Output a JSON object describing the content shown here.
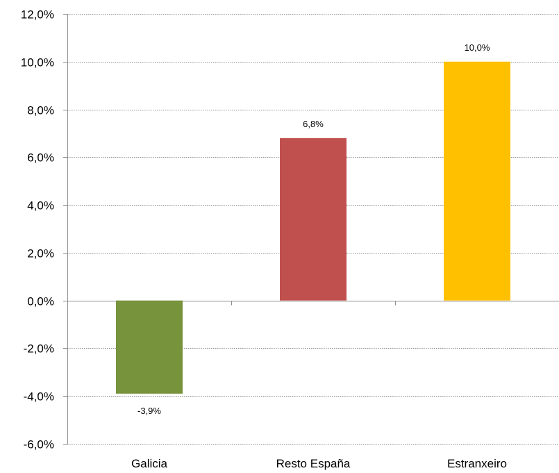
{
  "chart_data": {
    "type": "bar",
    "title": "",
    "xlabel": "",
    "ylabel": "",
    "categories": [
      "Galicia",
      "Resto España",
      "Estranxeiro"
    ],
    "values": [
      -3.9,
      6.8,
      10.0
    ],
    "data_labels": [
      "-3,9%",
      "6,8%",
      "10,0%"
    ],
    "colors": [
      "#77933C",
      "#C0504D",
      "#FFC000"
    ],
    "ylim": [
      -6,
      12
    ],
    "yticks": [
      12,
      10,
      8,
      6,
      4,
      2,
      0,
      -2,
      -4,
      -6
    ],
    "ytick_labels": [
      "12,0%",
      "10,0%",
      "8,0%",
      "6,0%",
      "4,0%",
      "2,0%",
      "0,0%",
      "-2,0%",
      "-4,0%",
      "-6,0%"
    ],
    "grid": true,
    "legend": "none"
  }
}
